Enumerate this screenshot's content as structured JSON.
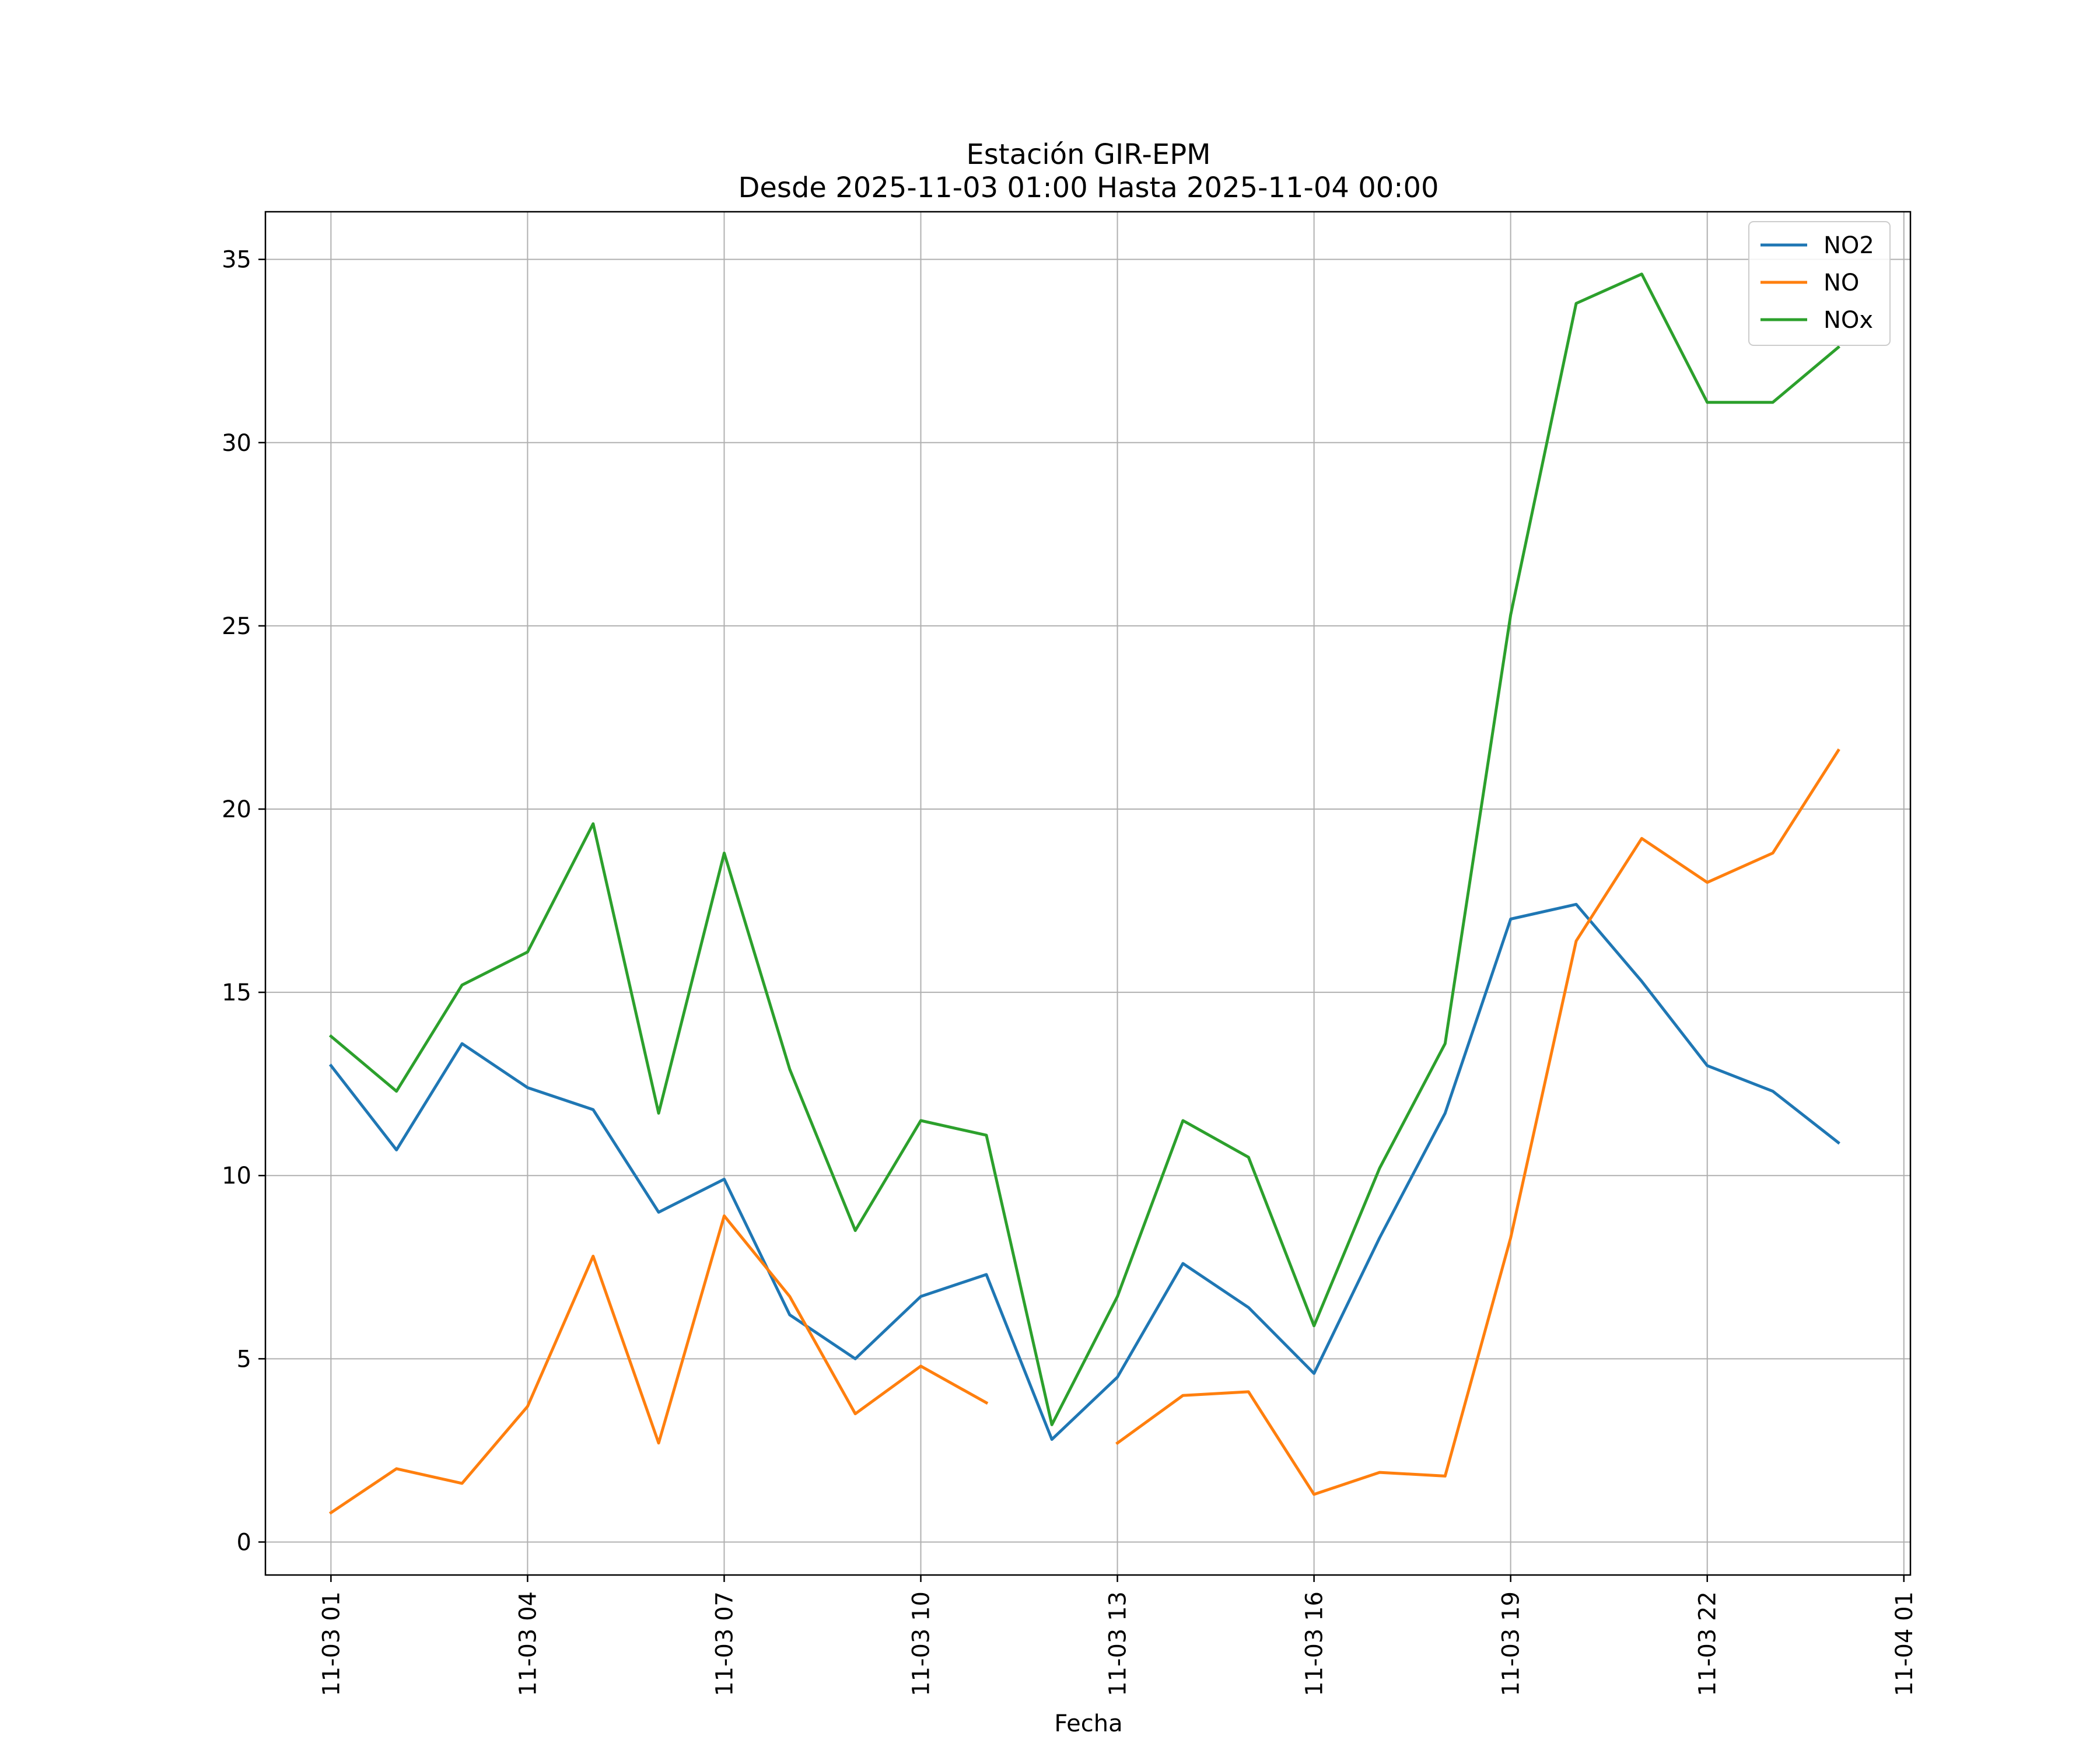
{
  "chart_data": {
    "type": "line",
    "title": "Estación GIR-EPM",
    "subtitle": "Desde 2025-11-03 01:00 Hasta 2025-11-04 00:00",
    "xlabel": "Fecha",
    "ylabel": "",
    "x": [
      "2025-11-03 01:00",
      "2025-11-03 02:00",
      "2025-11-03 03:00",
      "2025-11-03 04:00",
      "2025-11-03 05:00",
      "2025-11-03 06:00",
      "2025-11-03 07:00",
      "2025-11-03 08:00",
      "2025-11-03 09:00",
      "2025-11-03 10:00",
      "2025-11-03 11:00",
      "2025-11-03 12:00",
      "2025-11-03 13:00",
      "2025-11-03 14:00",
      "2025-11-03 15:00",
      "2025-11-03 16:00",
      "2025-11-03 17:00",
      "2025-11-03 18:00",
      "2025-11-03 19:00",
      "2025-11-03 20:00",
      "2025-11-03 21:00",
      "2025-11-03 22:00",
      "2025-11-03 23:00",
      "2025-11-04 00:00"
    ],
    "series": [
      {
        "name": "NO2",
        "color": "#1f77b4",
        "values": [
          13.0,
          10.7,
          13.6,
          12.4,
          11.8,
          9.0,
          9.9,
          6.2,
          5.0,
          6.7,
          7.3,
          2.8,
          4.5,
          7.6,
          6.4,
          4.6,
          8.3,
          11.7,
          17.0,
          17.4,
          15.3,
          13.0,
          12.3,
          10.9
        ]
      },
      {
        "name": "NO",
        "color": "#ff7f0e",
        "values": [
          0.8,
          2.0,
          1.6,
          3.7,
          7.8,
          2.7,
          8.9,
          6.7,
          3.5,
          4.8,
          3.8,
          null,
          2.7,
          4.0,
          4.1,
          1.3,
          1.9,
          1.8,
          8.3,
          16.4,
          19.2,
          18.0,
          18.8,
          21.6
        ]
      },
      {
        "name": "NOx",
        "color": "#2ca02c",
        "values": [
          13.8,
          12.3,
          15.2,
          16.1,
          19.6,
          11.7,
          18.8,
          12.9,
          8.5,
          11.5,
          11.1,
          3.2,
          6.7,
          11.5,
          10.5,
          5.9,
          10.2,
          13.6,
          25.3,
          33.8,
          34.6,
          31.1,
          31.1,
          32.6
        ]
      }
    ],
    "xticks": [
      "11-03 01",
      "11-03 04",
      "11-03 07",
      "11-03 10",
      "11-03 13",
      "11-03 16",
      "11-03 19",
      "11-03 22",
      "11-04 01"
    ],
    "yticks": [
      0,
      5,
      10,
      15,
      20,
      25,
      30,
      35
    ],
    "xlim": [
      "2025-11-03 00:00",
      "2025-11-04 01:06"
    ],
    "ylim": [
      -0.9,
      36.3
    ],
    "grid": true,
    "legend_position": "upper right",
    "colors": {
      "axes": "#000000",
      "grid": "#b0b0b0",
      "background": "#ffffff"
    }
  }
}
